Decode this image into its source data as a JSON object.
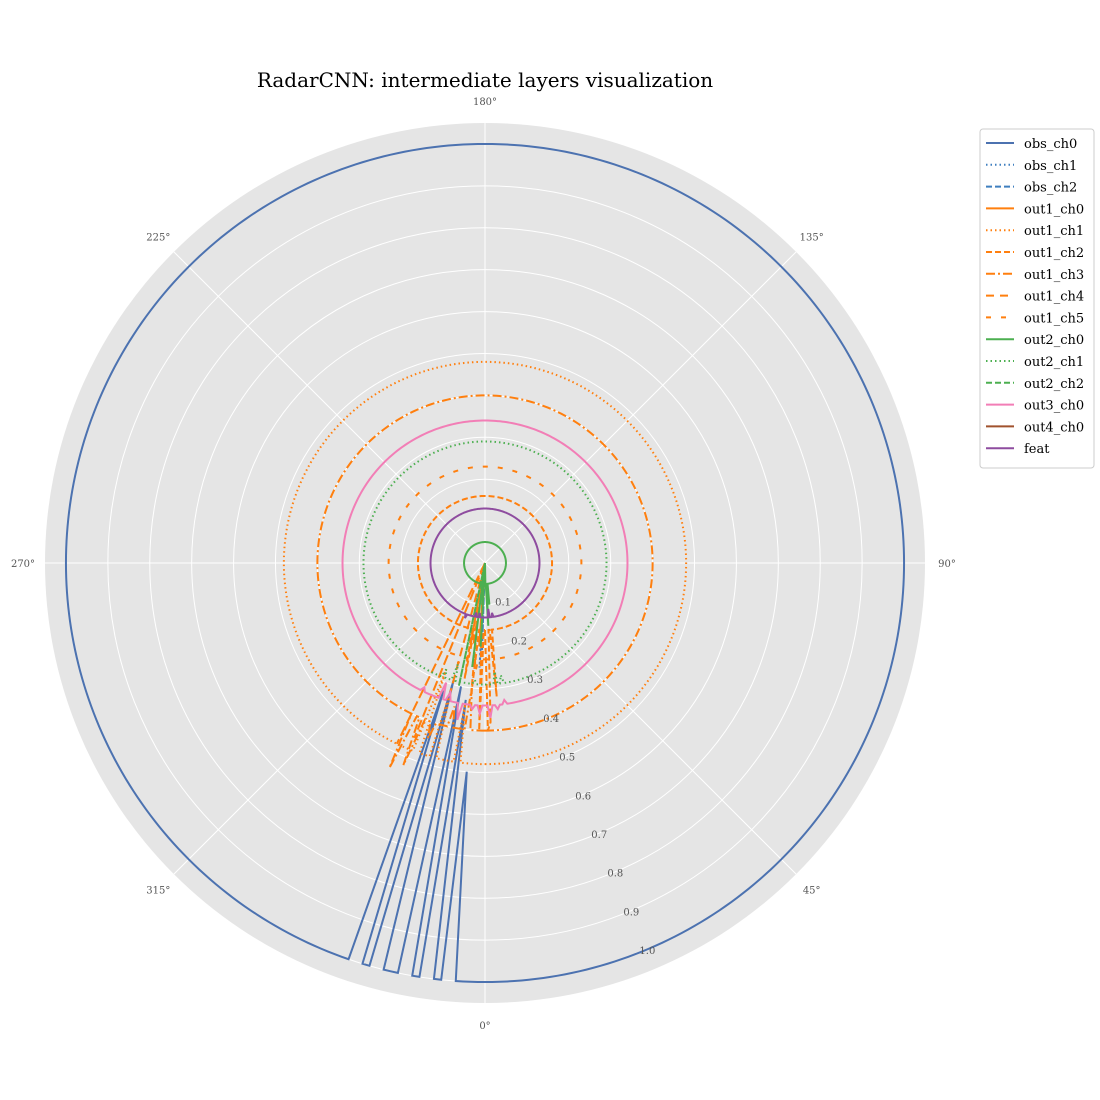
{
  "chart_data": {
    "type": "line",
    "subtype": "polar",
    "title": "RadarCNN: intermediate layers visualization",
    "theta_zero_location": "bottom",
    "theta_direction": "counterclockwise",
    "rlim": [
      0,
      1.05
    ],
    "grid": true,
    "legend_position": "outside-top-right",
    "angle_ticks": [
      "0°",
      "45°",
      "90°",
      "135°",
      "180°",
      "225°",
      "270°",
      "315°"
    ],
    "radius_ticks": [
      "0.1",
      "0.2",
      "0.3",
      "0.4",
      "0.5",
      "0.6",
      "0.7",
      "0.8",
      "0.9",
      "1.0"
    ],
    "series": [
      {
        "name": "obs_ch0",
        "color": "#4c72b0",
        "dash": "solid",
        "base": 1.0,
        "points": [
          [
            0,
            1.0
          ],
          [
            338,
            1.0
          ],
          [
            342,
            0.32
          ],
          [
            345,
            0.29
          ],
          [
            349,
            0.3
          ],
          [
            352,
            0.33
          ],
          [
            355,
            0.5
          ]
        ]
      },
      {
        "name": "obs_ch1",
        "color": "#3f7fbf",
        "dash": "dotted",
        "base": 0.0,
        "points": [
          [
            357,
            0.25
          ],
          [
            0,
            0.0
          ]
        ]
      },
      {
        "name": "obs_ch2",
        "color": "#3f7fbf",
        "dash": "dashed",
        "base": 0.0,
        "points": [
          [
            358,
            0.22
          ],
          [
            0,
            0.0
          ]
        ]
      },
      {
        "name": "out1_ch0",
        "color": "#ff7f0e",
        "dash": "solid",
        "base": 0.0,
        "points": [
          [
            350,
            0.2
          ],
          [
            356,
            0.2
          ],
          [
            0,
            0.0
          ]
        ]
      },
      {
        "name": "out1_ch1",
        "color": "#ff7f0e",
        "dash": "dotted",
        "base": 0.48,
        "points": [
          [
            352,
            0.34
          ],
          [
            357,
            0.48
          ],
          [
            359,
            0.48
          ],
          [
            4,
            0.48
          ],
          [
            8,
            0.48
          ],
          [
            345,
            0.31
          ],
          [
            340,
            0.27
          ]
        ]
      },
      {
        "name": "out1_ch2",
        "color": "#ff7f0e",
        "dash": "dashed",
        "base": 0.16,
        "points": [
          [
            350,
            0.28
          ],
          [
            354,
            0.32
          ],
          [
            358,
            0.4
          ],
          [
            1,
            0.4
          ],
          [
            2,
            0.38
          ],
          [
            5,
            0.32
          ]
        ]
      },
      {
        "name": "out1_ch3",
        "color": "#ff7f0e",
        "dash": "dashdot",
        "base": 0.4,
        "points": [
          [
            335,
            0.54
          ],
          [
            338,
            0.52
          ],
          [
            342,
            0.44
          ],
          [
            348,
            0.35
          ],
          [
            354,
            0.3
          ]
        ]
      },
      {
        "name": "out1_ch4",
        "color": "#ff7f0e",
        "dash": "longdash",
        "base": 0.0,
        "points": [
          [
            334,
            0.48
          ],
          [
            338,
            0.45
          ],
          [
            345,
            0.32
          ],
          [
            352,
            0.2
          ],
          [
            357,
            0.12
          ],
          [
            0,
            0.0
          ]
        ]
      },
      {
        "name": "out1_ch5",
        "color": "#ff7f0e",
        "dash": "sparsedash",
        "base": 0.23,
        "points": [
          [
            345,
            0.25
          ],
          [
            350,
            0.24
          ],
          [
            355,
            0.26
          ]
        ]
      },
      {
        "name": "out2_ch0",
        "color": "#4caf50",
        "dash": "solid",
        "base": 0.05,
        "points": [
          [
            356,
            0.1
          ],
          [
            0,
            0.0
          ],
          [
            3,
            0.15
          ],
          [
            6,
            0.1
          ]
        ]
      },
      {
        "name": "out2_ch1",
        "color": "#4caf50",
        "dash": "dotted",
        "base": 0.29,
        "points": [
          [
            340,
            0.27
          ],
          [
            345,
            0.25
          ],
          [
            355,
            0.28
          ],
          [
            5,
            0.26
          ],
          [
            8,
            0.27
          ]
        ]
      },
      {
        "name": "out2_ch2",
        "color": "#4caf50",
        "dash": "dashed",
        "base": 0.0,
        "points": [
          [
            348,
            0.3
          ],
          [
            353,
            0.25
          ],
          [
            357,
            0.2
          ],
          [
            0,
            0.0
          ]
        ]
      },
      {
        "name": "out3_ch0",
        "color": "#f27eb6",
        "dash": "solid",
        "base": 0.34,
        "points": [
          [
            334,
            0.33
          ],
          [
            338,
            0.34
          ],
          [
            342,
            0.3
          ],
          [
            345,
            0.32
          ],
          [
            350,
            0.38
          ],
          [
            355,
            0.35
          ],
          [
            358,
            0.36
          ],
          [
            2,
            0.37
          ],
          [
            5,
            0.35
          ],
          [
            8,
            0.33
          ]
        ]
      },
      {
        "name": "out4_ch0",
        "color": "#a0522d",
        "dash": "solid",
        "base": 0.0,
        "points": [
          [
            0,
            0.0
          ]
        ]
      },
      {
        "name": "feat",
        "color": "#8e4c9f",
        "dash": "solid",
        "base": 0.13,
        "points": [
          [
            340,
            0.14
          ],
          [
            345,
            0.13
          ],
          [
            350,
            0.12
          ],
          [
            354,
            0.12
          ],
          [
            357,
            0.13
          ],
          [
            1,
            0.13
          ],
          [
            4,
            0.11
          ],
          [
            8,
            0.12
          ]
        ]
      }
    ]
  }
}
